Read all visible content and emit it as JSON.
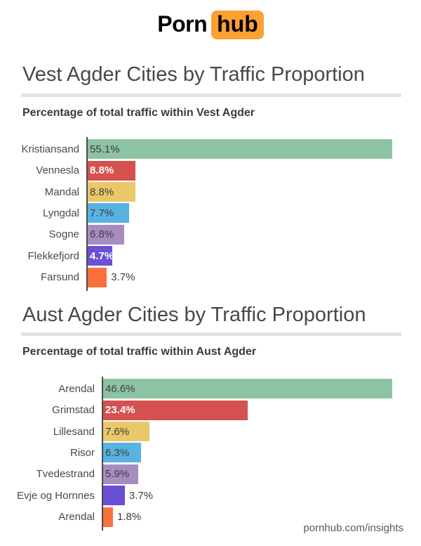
{
  "page": {
    "logo": {
      "part1": "Porn",
      "part2": "hub"
    },
    "footer": "pornhub.com/insights"
  },
  "colors": {
    "logo_accent": "#FFA033",
    "axis": "#4A4A4A",
    "divider": "#E2E2E2",
    "title_text": "#484848",
    "subtitle_text": "#3A3A3A",
    "category_text": "#4A4A4A",
    "value_text_dark": "#3D3D3D",
    "value_text_light": "#FFFFFF",
    "footer_text": "#5A5A5A"
  },
  "chart_data": [
    {
      "type": "bar",
      "orientation": "horizontal",
      "title": "Vest Agder Cities by Traffic Proportion",
      "subtitle": "Percentage of total traffic within Vest Agder",
      "categories": [
        "Kristiansand",
        "Vennesla",
        "Mandal",
        "Lyngdal",
        "Sogne",
        "Flekkefjord",
        "Farsund"
      ],
      "values": [
        55.1,
        8.8,
        8.8,
        7.7,
        6.8,
        4.7,
        3.7
      ],
      "value_labels": [
        "55.1%",
        "8.8%",
        "8.8%",
        "7.7%",
        "6.8%",
        "4.7%",
        "3.7%"
      ],
      "bar_colors": [
        "#8CC3A3",
        "#D5514F",
        "#EAC869",
        "#58B3E2",
        "#A78CC1",
        "#6A50D3",
        "#F9703D"
      ],
      "value_label_inside": [
        true,
        true,
        true,
        true,
        true,
        true,
        false
      ],
      "value_label_light": [
        false,
        true,
        false,
        false,
        false,
        true,
        false
      ],
      "xlim": [
        0,
        55.1
      ],
      "grid": false,
      "legend": false
    },
    {
      "type": "bar",
      "orientation": "horizontal",
      "title": "Aust Agder Cities by Traffic Proportion",
      "subtitle": "Percentage of total traffic within Aust Agder",
      "categories": [
        "Arendal",
        "Grimstad",
        "Lillesand",
        "Risor",
        "Tvedestrand",
        "Evje og Hornnes",
        "Arendal"
      ],
      "values": [
        46.6,
        23.4,
        7.6,
        6.3,
        5.9,
        3.7,
        1.8
      ],
      "value_labels": [
        "46.6%",
        "23.4%",
        "7.6%",
        "6.3%",
        "5.9%",
        "3.7%",
        "1.8%"
      ],
      "bar_colors": [
        "#8CC3A3",
        "#D5514F",
        "#EAC869",
        "#58B3E2",
        "#A78CC1",
        "#6A50D3",
        "#F9703D"
      ],
      "value_label_inside": [
        true,
        true,
        true,
        true,
        true,
        false,
        false
      ],
      "value_label_light": [
        false,
        true,
        false,
        false,
        false,
        false,
        false
      ],
      "xlim": [
        0,
        46.6
      ],
      "grid": false,
      "legend": false
    }
  ]
}
